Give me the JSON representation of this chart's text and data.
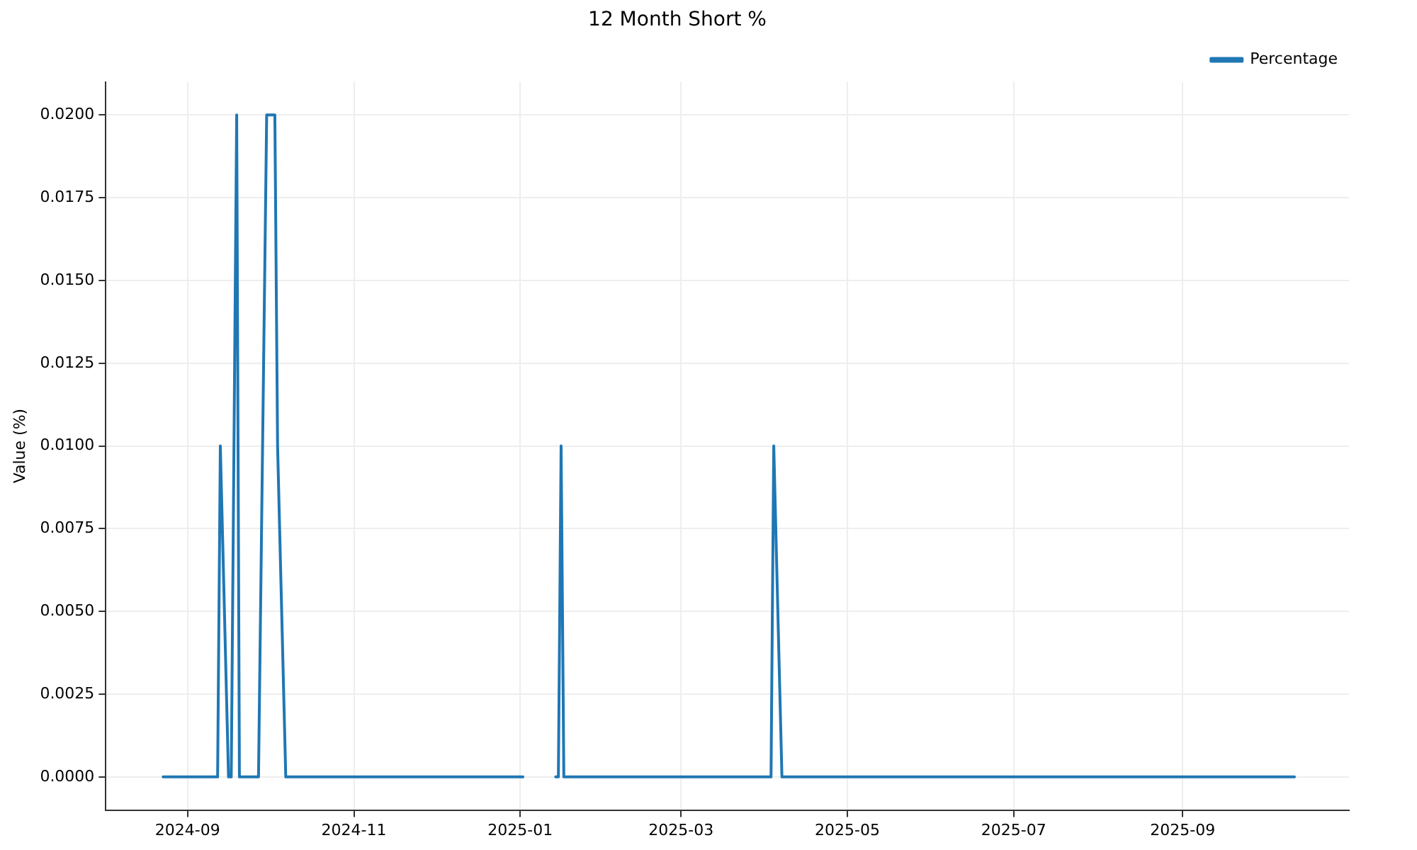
{
  "chart_data": {
    "type": "line",
    "title": "12 Month Short %",
    "ylabel": "Value (%)",
    "x": [
      "2024-08-23",
      "2024-09-12",
      "2024-09-13",
      "2024-09-16",
      "2024-09-17",
      "2024-09-19",
      "2024-09-20",
      "2024-09-27",
      "2024-09-30",
      "2024-10-03",
      "2024-10-04",
      "2024-10-07",
      "2025-01-02",
      "2025-01-08",
      "2025-01-14",
      "2025-01-15",
      "2025-01-16",
      "2025-01-17",
      "2025-04-03",
      "2025-04-04",
      "2025-04-07",
      "2025-10-12"
    ],
    "series": [
      {
        "name": "Percentage",
        "color": "#1f77b4",
        "values": [
          0,
          0,
          0.01,
          0,
          0,
          0.02,
          0,
          0,
          0.02,
          0.02,
          0.01,
          0,
          0,
          null,
          0,
          0,
          0.01,
          0,
          0,
          0.01,
          0,
          0
        ]
      }
    ],
    "xlim": [
      "2024-08-02",
      "2025-11-01"
    ],
    "xticks": [
      "2024-09",
      "2024-11",
      "2025-01",
      "2025-03",
      "2025-05",
      "2025-07",
      "2025-09"
    ],
    "ylim": [
      -0.001,
      0.021
    ],
    "yticks": [
      {
        "value": 0,
        "label": "0.0000"
      },
      {
        "value": 0.0025,
        "label": "0.0025"
      },
      {
        "value": 0.005,
        "label": "0.0050"
      },
      {
        "value": 0.0075,
        "label": "0.0075"
      },
      {
        "value": 0.01,
        "label": "0.0100"
      },
      {
        "value": 0.0125,
        "label": "0.0125"
      },
      {
        "value": 0.015,
        "label": "0.0150"
      },
      {
        "value": 0.0175,
        "label": "0.0175"
      },
      {
        "value": 0.02,
        "label": "0.0200"
      }
    ],
    "grid": true,
    "legend": "top right",
    "marker": "none",
    "line_style": "solid"
  }
}
